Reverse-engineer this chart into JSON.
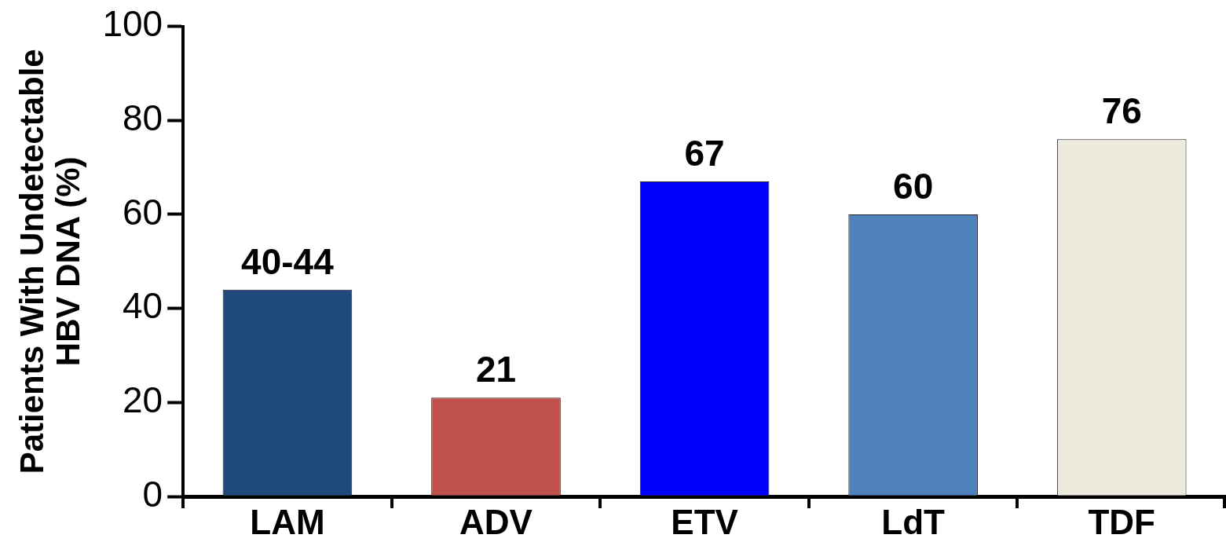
{
  "chart_data": {
    "type": "bar",
    "ylabel": "Patients With Undetectable HBV DNA (%)",
    "categories": [
      "LAM",
      "ADV",
      "ETV",
      "LdT",
      "TDF"
    ],
    "values": [
      44,
      21,
      67,
      60,
      76
    ],
    "value_labels": [
      "40-44",
      "21",
      "67",
      "60",
      "76"
    ],
    "colors": [
      "#204a7c",
      "#c0504d",
      "#0000ff",
      "#4f81bd",
      "#ece9dd"
    ],
    "ylim": [
      0,
      100
    ],
    "yticks": [
      0,
      20,
      40,
      60,
      80,
      100
    ]
  }
}
